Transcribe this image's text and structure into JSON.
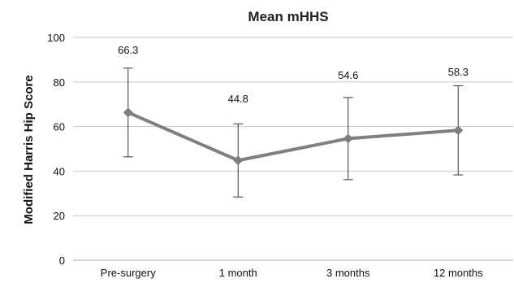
{
  "chart_data": {
    "type": "line",
    "title": "Mean mHHS",
    "xlabel": "",
    "ylabel": "Modified Harris Hip Score",
    "categories": [
      "Pre-surgery",
      "1 month",
      "3 months",
      "12 months"
    ],
    "series": [
      {
        "values": [
          66.3,
          44.8,
          54.6,
          58.3
        ],
        "error_upper": [
          86.2,
          61.2,
          73.0,
          78.3
        ],
        "error_lower": [
          46.4,
          28.4,
          36.2,
          38.3
        ],
        "data_labels": [
          "66.3",
          "44.8",
          "54.6",
          "58.3"
        ],
        "color": "#7f7f7f"
      }
    ],
    "ylim": [
      0,
      100
    ],
    "yticks": [
      0,
      20,
      40,
      60,
      80,
      100
    ],
    "grid": true,
    "legend": "none"
  }
}
